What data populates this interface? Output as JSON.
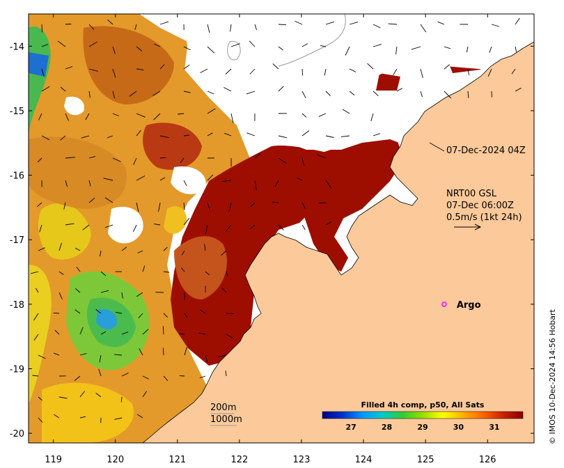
{
  "map": {
    "lon_ticks": [
      119,
      120,
      121,
      122,
      123,
      124,
      125,
      126
    ],
    "lat_ticks": [
      -14,
      -15,
      -16,
      -17,
      -18,
      -19,
      -20
    ],
    "lon_range": [
      118.6,
      126.75
    ],
    "lat_range": [
      -20.15,
      -13.5
    ]
  },
  "annotations": {
    "coast_timestamp": "07-Dec-2024 04Z",
    "current_model": "NRT00 GSL",
    "current_time": "07-Dec 06:00Z",
    "current_scale": "0.5m/s (1kt 24h)",
    "isobath_200": "200m",
    "isobath_1000": "1000m"
  },
  "argo": {
    "label": "Argo",
    "lon": 125.3,
    "lat": -18.0,
    "color": "#ff00ff"
  },
  "colorbar": {
    "title": "Filled 4h comp, p50, All Sats",
    "min": 26.2,
    "max": 31.8,
    "ticks": [
      {
        "value": 27,
        "label": "27"
      },
      {
        "value": 28,
        "label": "28"
      },
      {
        "value": 29,
        "label": "29"
      },
      {
        "value": 30,
        "label": "30"
      },
      {
        "value": 31,
        "label": "31"
      }
    ],
    "stops": [
      "#00008b",
      "#0033cc",
      "#0099ff",
      "#00cccc",
      "#33cc33",
      "#99dd00",
      "#ffff00",
      "#ffb000",
      "#ff6600",
      "#cc2200",
      "#8b0000"
    ]
  },
  "credit": "© IMOS 10-Dec-2024 14:56 Hobart",
  "colors": {
    "land": "#fbc99a",
    "cloud": "#ffffff",
    "warm": "#9e0e00",
    "hot": "#c44a10",
    "orange": "#e8901c",
    "yellow": "#eecc10",
    "green": "#59c440",
    "blue": "#1d8fd8",
    "arrow": "#000000"
  }
}
